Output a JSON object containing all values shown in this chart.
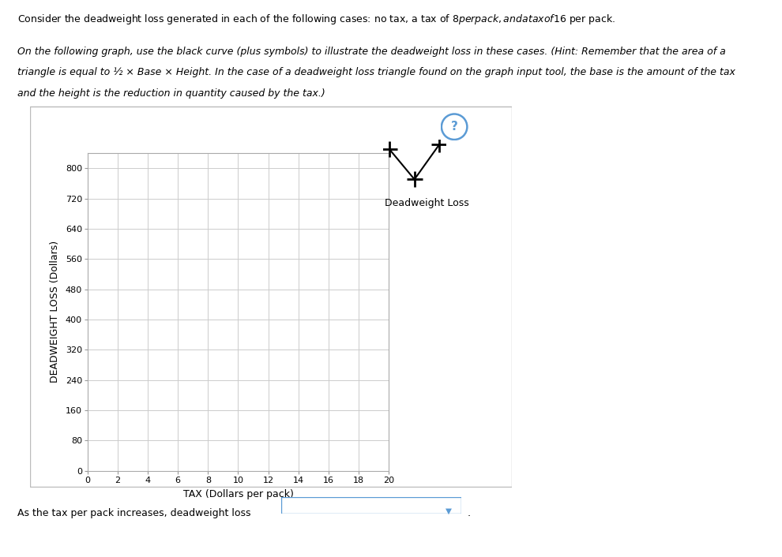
{
  "ylabel": "DEADWEIGHT LOSS (Dollars)",
  "xlabel": "TAX (Dollars per pack)",
  "yticks": [
    0,
    80,
    160,
    240,
    320,
    400,
    480,
    560,
    640,
    720,
    800
  ],
  "xticks": [
    0,
    2,
    4,
    6,
    8,
    10,
    12,
    14,
    16,
    18,
    20
  ],
  "ylim": [
    0,
    840
  ],
  "xlim": [
    0,
    20
  ],
  "legend_label": "Deadweight Loss",
  "grid_color": "#cccccc",
  "background_color": "#ffffff",
  "text_line1": "Consider the deadweight loss generated in each of the following cases: no tax, a tax of $8 per pack, and a tax of $16 per pack.",
  "text_line2a": "On the following graph, use the black curve (plus symbols) to illustrate the deadweight loss in these cases. (Hint: Remember that the area of a",
  "text_line2b": "triangle is equal to ½ × Base × Height. In the case of a deadweight loss triangle found on the graph input tool, the base is the amount of the tax",
  "text_line2c": "and the height is the reduction in quantity caused by the tax.)",
  "footer_text": "As the tax per pack increases, deadweight loss",
  "question_mark": "?"
}
